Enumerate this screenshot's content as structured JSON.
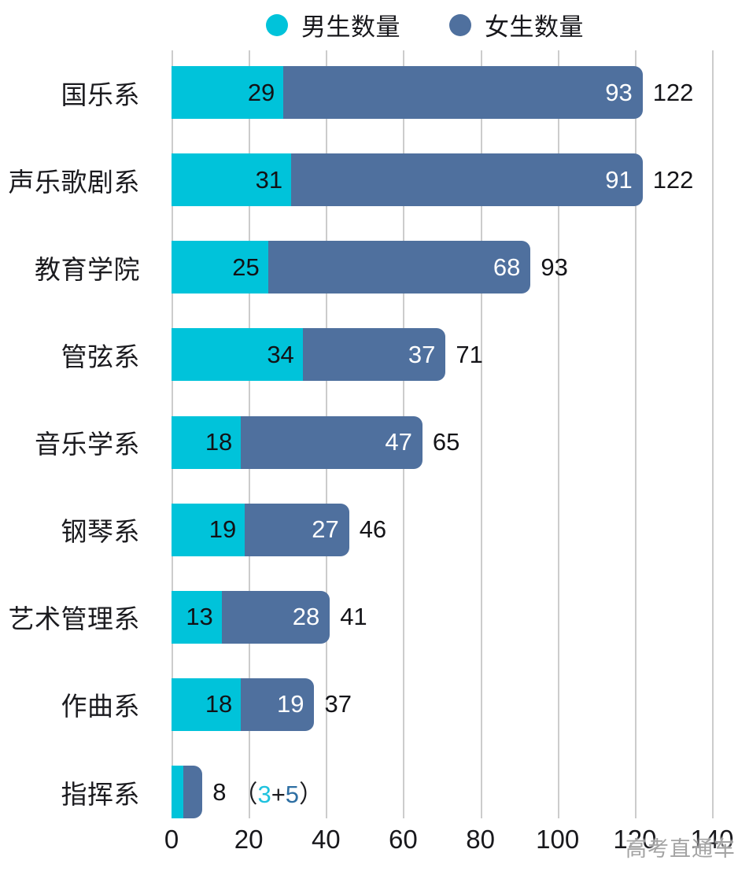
{
  "legend": {
    "items": [
      {
        "label": "男生数量",
        "color": "#00C3DA"
      },
      {
        "label": "女生数量",
        "color": "#4F709E"
      }
    ]
  },
  "chart_data": {
    "type": "bar",
    "orientation": "horizontal",
    "stacked": true,
    "title": "",
    "xlabel": "",
    "ylabel": "",
    "categories": [
      "国乐系",
      "声乐歌剧系",
      "教育学院",
      "管弦系",
      "音乐学系",
      "钢琴系",
      "艺术管理系",
      "作曲系",
      "指挥系"
    ],
    "series": [
      {
        "name": "男生数量",
        "color": "#00C3DA",
        "values": [
          29,
          31,
          25,
          34,
          18,
          19,
          13,
          18,
          3
        ]
      },
      {
        "name": "女生数量",
        "color": "#4F709E",
        "values": [
          93,
          91,
          68,
          37,
          47,
          27,
          28,
          19,
          5
        ]
      }
    ],
    "totals": [
      122,
      122,
      93,
      71,
      65,
      46,
      41,
      37,
      8
    ],
    "xlim": [
      0,
      140
    ],
    "x_ticks": [
      "0",
      "20",
      "40",
      "60",
      "80",
      "100",
      "120",
      "140"
    ],
    "grid": "vertical",
    "legend_position": "top",
    "annotation": {
      "row_index": 8,
      "parts": [
        {
          "text": "（",
          "color": "#1d1d21"
        },
        {
          "text": "3",
          "color": "#1FC2DE"
        },
        {
          "text": "+",
          "color": "#1d1d21"
        },
        {
          "text": "5",
          "color": "#2E6FA3"
        },
        {
          "text": "）",
          "color": "#1d1d21"
        }
      ]
    }
  },
  "watermark": "高考直通车"
}
